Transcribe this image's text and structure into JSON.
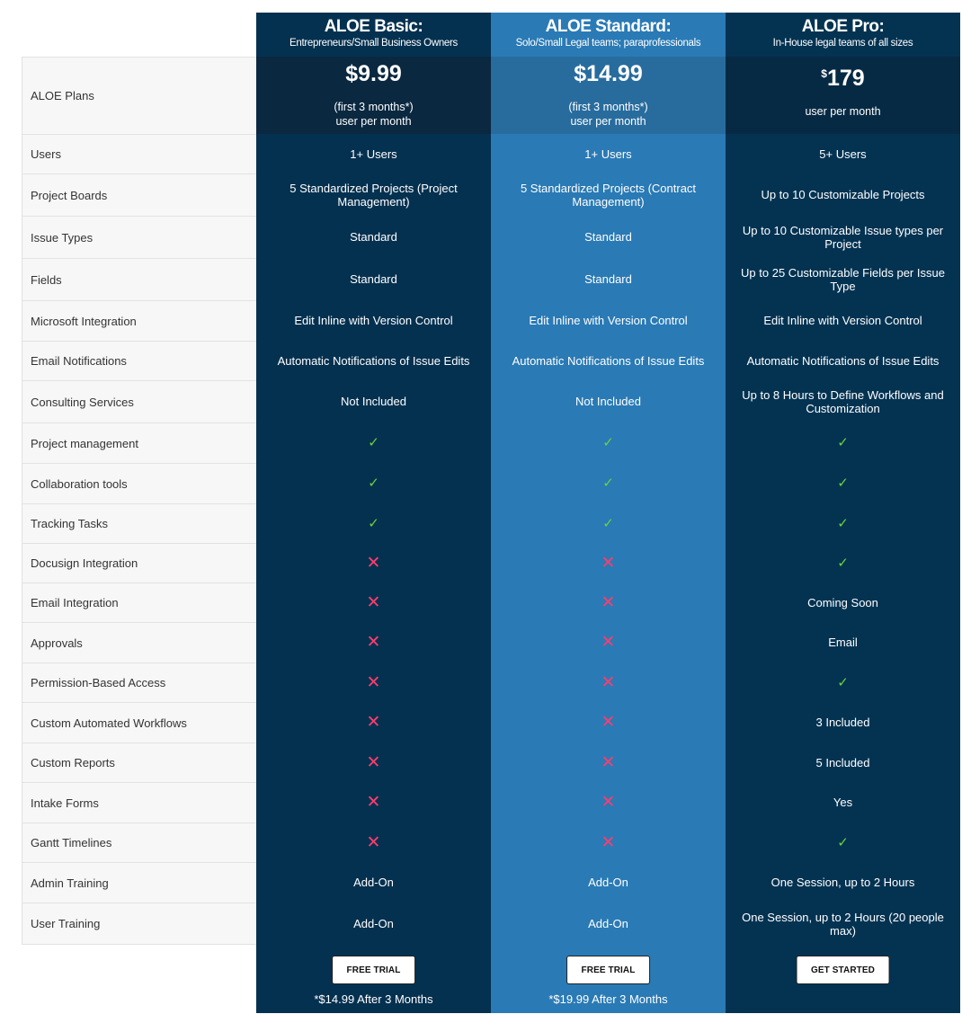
{
  "plans": [
    {
      "name": "ALOE Basic:",
      "subtitle": "Entrepreneurs/Small Business Owners",
      "price": "$9.99",
      "price_note_1": "(first 3 months*)",
      "price_note_2": "user per month",
      "cta": "FREE TRIAL",
      "after_note": "*$14.99 After 3 Months",
      "values": [
        "1+ Users",
        "5 Standardized Projects (Project Management)",
        "Standard",
        "Standard",
        "Edit Inline with Version Control",
        "Automatic Notifications of Issue Edits",
        "Not Included",
        "✓",
        "✓",
        "✓",
        "✕",
        "✕",
        "✕",
        "✕",
        "✕",
        "✕",
        "✕",
        "✕",
        "Add-On",
        "Add-On"
      ]
    },
    {
      "name": "ALOE Standard:",
      "subtitle": "Solo/Small Legal teams; paraprofessionals",
      "price": "$14.99",
      "price_note_1": "(first 3 months*)",
      "price_note_2": "user per month",
      "cta": "FREE TRIAL",
      "after_note": "*$19.99 After 3 Months",
      "values": [
        "1+ Users",
        "5 Standardized Projects (Contract Management)",
        "Standard",
        "Standard",
        "Edit Inline with Version Control",
        "Automatic Notifications of Issue Edits",
        "Not Included",
        "✓",
        "✓",
        "✓",
        "✕",
        "✕",
        "✕",
        "✕",
        "✕",
        "✕",
        "✕",
        "✕",
        "Add-On",
        "Add-On"
      ]
    },
    {
      "name": "ALOE Pro:",
      "subtitle": "In-House legal teams of all sizes",
      "price_currency": "$",
      "price_amount": "179",
      "price_note_2": "user per month",
      "cta": "GET STARTED",
      "values": [
        "5+ Users",
        "Up to 10 Customizable Projects",
        "Up to 10 Customizable Issue types per Project",
        "Up to 25 Customizable Fields per Issue Type",
        "Edit Inline with Version Control",
        "Automatic Notifications of Issue Edits",
        "Up to 8 Hours to Define Workflows and Customization",
        "✓",
        "✓",
        "✓",
        "✓",
        "Coming Soon",
        "Email",
        "✓",
        "3 Included",
        "5 Included",
        "Yes",
        "✓",
        "One Session, up to 2 Hours",
        "One Session, up to 2 Hours (20 people max)"
      ]
    }
  ],
  "features_header": "ALOE Plans",
  "features": [
    "Users",
    "Project Boards",
    "Issue Types",
    "Fields",
    "Microsoft Integration",
    "Email Notifications",
    "Consulting Services",
    "Project management",
    "Collaboration tools",
    "Tracking Tasks",
    "Docusign Integration",
    "Email Integration",
    "Approvals",
    "Permission-Based Access",
    "Custom Automated Workflows",
    "Custom Reports",
    "Intake Forms",
    "Gantt Timelines",
    "Admin Training",
    "User Training"
  ],
  "colors": {
    "basic_bg": "#053150",
    "standard_bg": "#2a7ab5",
    "pro_bg": "#043352",
    "check": "#6bd33a",
    "cross": "#ff3d6e"
  }
}
